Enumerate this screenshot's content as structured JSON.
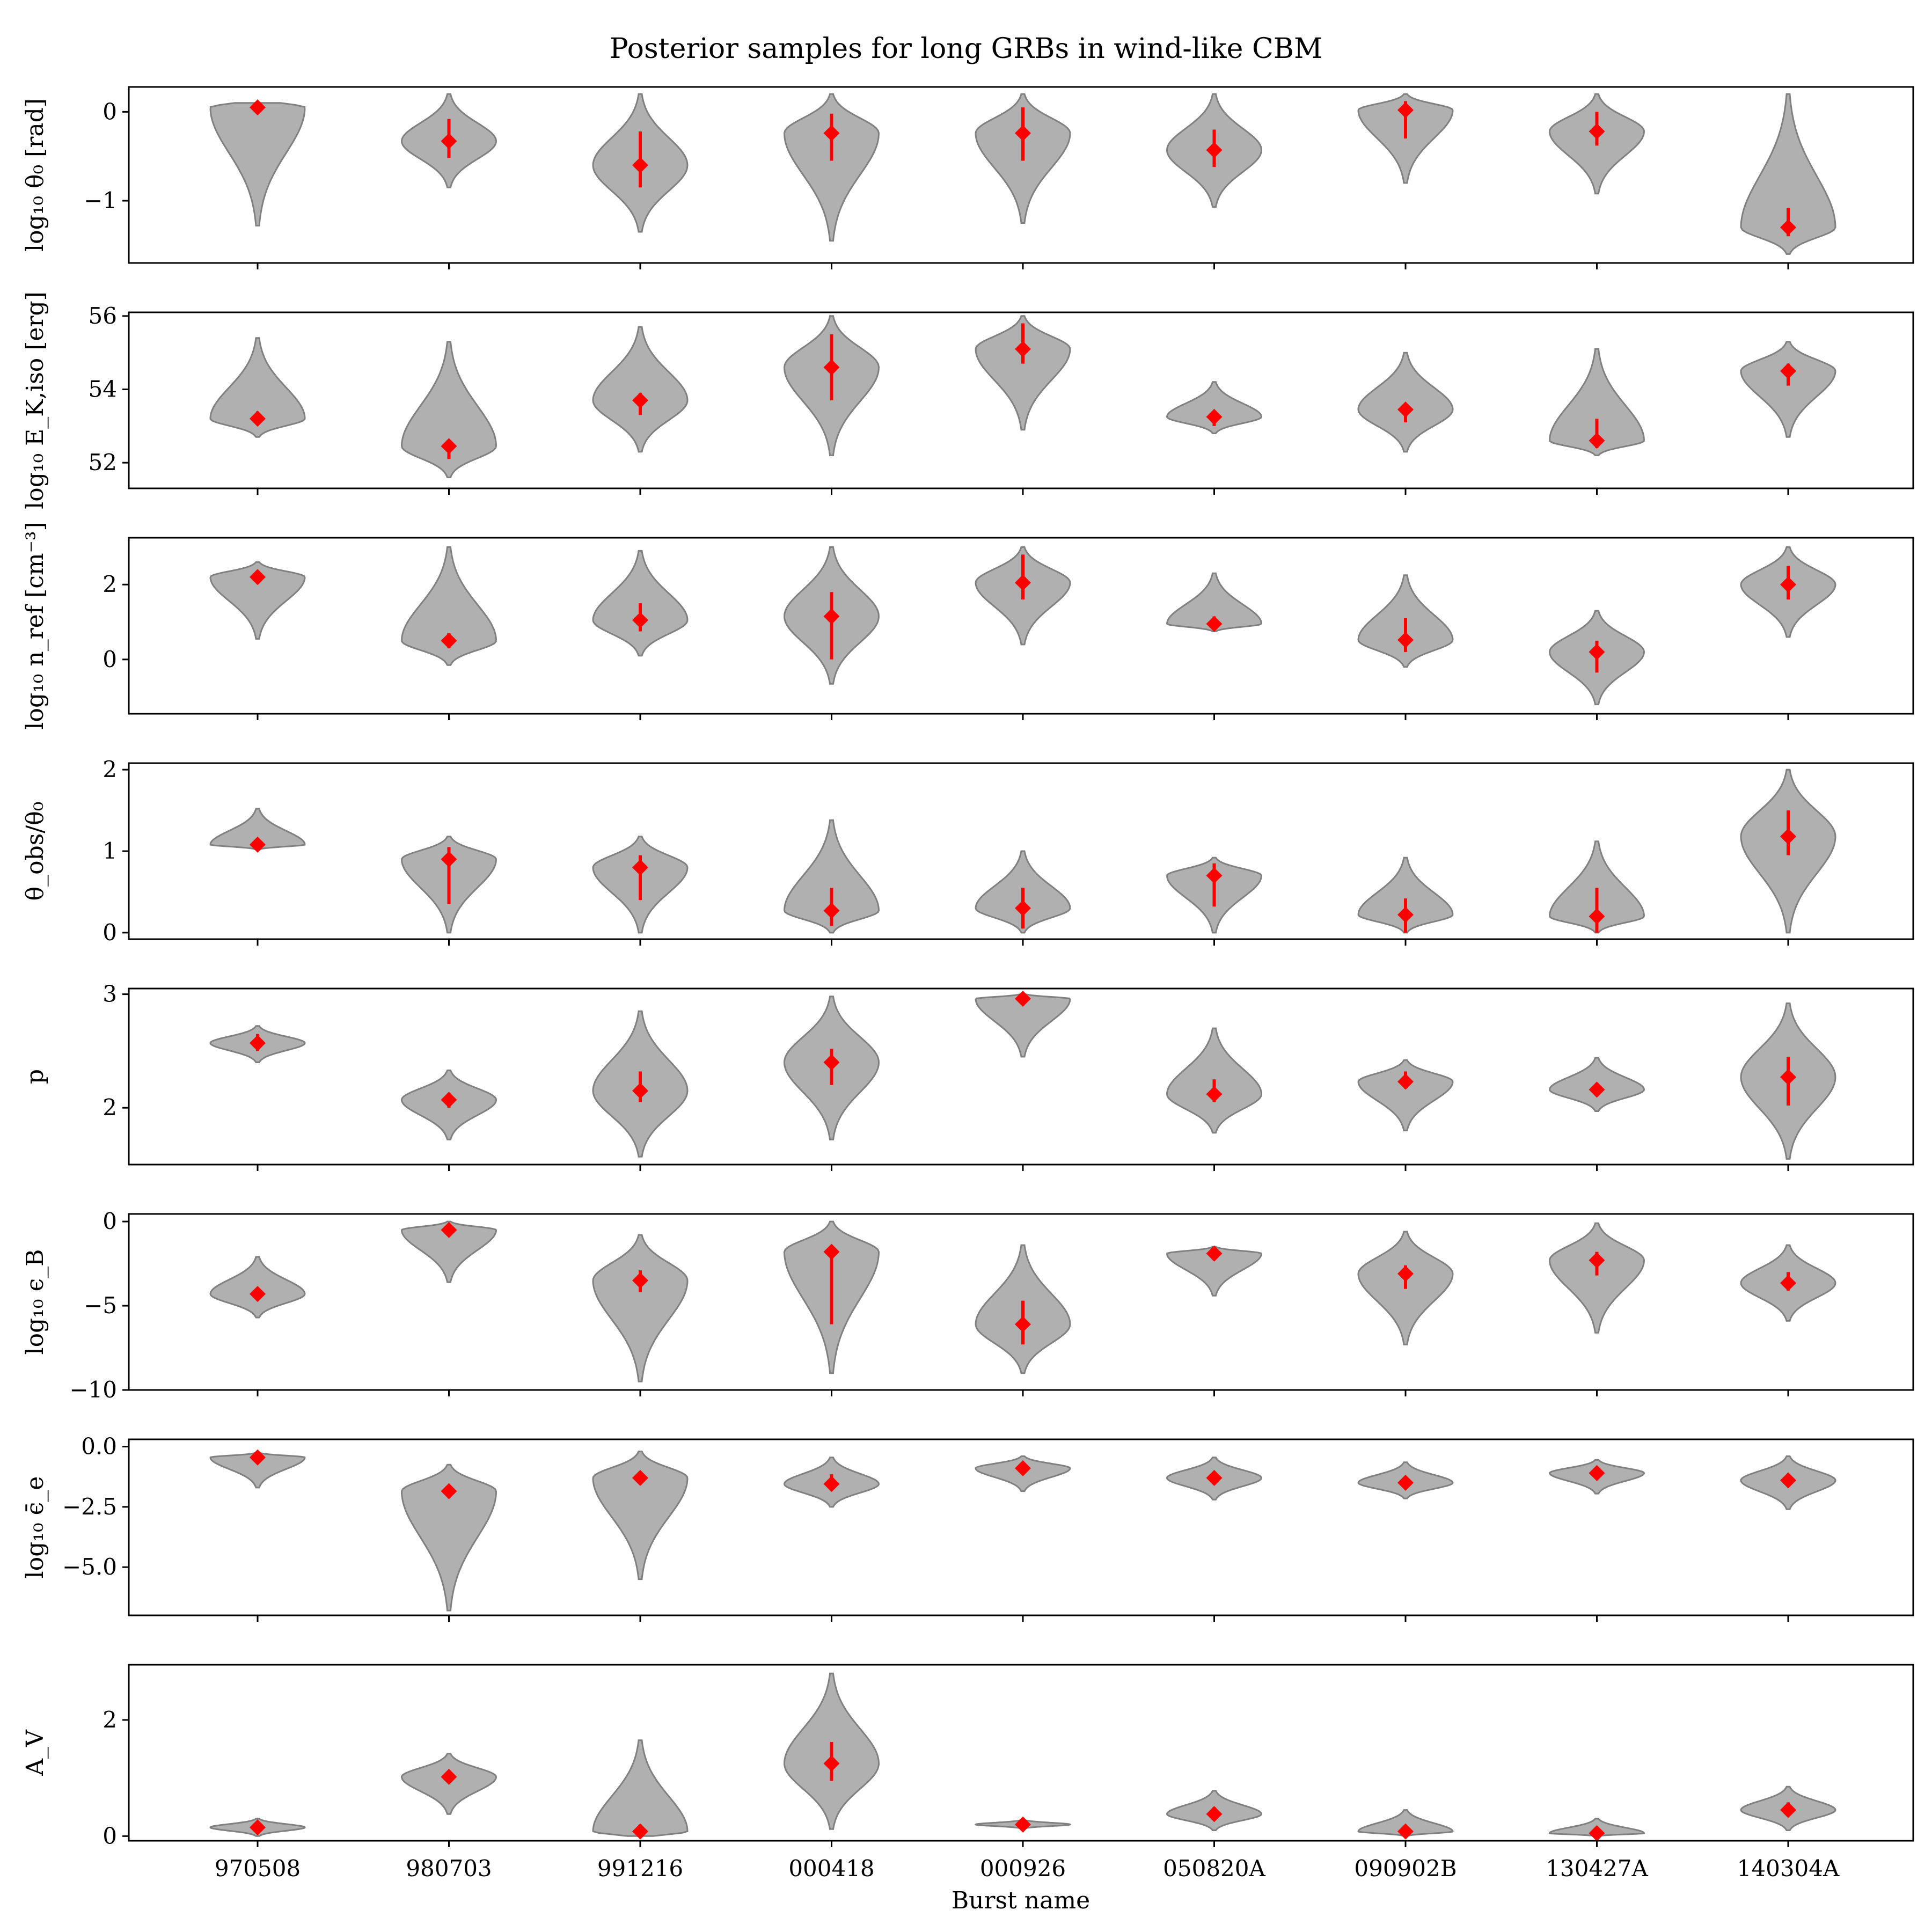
{
  "chart_data": {
    "type": "violin",
    "title": "Posterior samples for long GRBs in wind-like CBM",
    "xlabel": "Burst name",
    "categories": [
      "970508",
      "980703",
      "991216",
      "000418",
      "000926",
      "050820A",
      "090902B",
      "130427A",
      "140304A"
    ],
    "colors": {
      "violin_fill": "#b0b0b0",
      "violin_edge": "#808080",
      "marker": "#ff0000"
    },
    "panels": [
      {
        "ylabel": "log₁₀ θ₀ [rad]",
        "ylim": [
          -1.7,
          0.28
        ],
        "yticks": [
          0,
          -1
        ],
        "ytick_labels": [
          "0",
          "−1"
        ],
        "series": [
          {
            "median": 0.05,
            "ci": [
              0.02,
              0.08
            ],
            "range": [
              -1.28,
              0.1
            ]
          },
          {
            "median": -0.33,
            "ci": [
              -0.52,
              -0.08
            ],
            "range": [
              -0.85,
              0.2
            ]
          },
          {
            "median": -0.6,
            "ci": [
              -0.85,
              -0.22
            ],
            "range": [
              -1.35,
              0.2
            ]
          },
          {
            "median": -0.24,
            "ci": [
              -0.55,
              -0.02
            ],
            "range": [
              -1.45,
              0.2
            ]
          },
          {
            "median": -0.24,
            "ci": [
              -0.55,
              0.05
            ],
            "range": [
              -1.25,
              0.2
            ]
          },
          {
            "median": -0.43,
            "ci": [
              -0.62,
              -0.2
            ],
            "range": [
              -1.07,
              0.2
            ]
          },
          {
            "median": 0.02,
            "ci": [
              -0.3,
              0.12
            ],
            "range": [
              -0.8,
              0.2
            ]
          },
          {
            "median": -0.22,
            "ci": [
              -0.38,
              0.0
            ],
            "range": [
              -0.92,
              0.2
            ]
          },
          {
            "median": -1.3,
            "ci": [
              -1.4,
              -1.08
            ],
            "range": [
              -1.6,
              0.2
            ]
          }
        ]
      },
      {
        "ylabel": "log₁₀ E_K,iso [erg]",
        "ylim": [
          51.3,
          56.1
        ],
        "yticks": [
          52,
          54,
          56
        ],
        "ytick_labels": [
          "52",
          "54",
          "56"
        ],
        "series": [
          {
            "median": 53.2,
            "ci": [
              53.1,
              53.4
            ],
            "range": [
              52.7,
              55.4
            ]
          },
          {
            "median": 52.45,
            "ci": [
              52.1,
              52.6
            ],
            "range": [
              51.6,
              55.3
            ]
          },
          {
            "median": 53.7,
            "ci": [
              53.3,
              53.9
            ],
            "range": [
              52.3,
              55.7
            ]
          },
          {
            "median": 54.6,
            "ci": [
              53.7,
              55.5
            ],
            "range": [
              52.2,
              56.0
            ]
          },
          {
            "median": 55.1,
            "ci": [
              54.7,
              55.8
            ],
            "range": [
              52.9,
              56.0
            ]
          },
          {
            "median": 53.25,
            "ci": [
              53.0,
              53.4
            ],
            "range": [
              52.8,
              54.2
            ]
          },
          {
            "median": 53.45,
            "ci": [
              53.1,
              53.6
            ],
            "range": [
              52.3,
              55.0
            ]
          },
          {
            "median": 52.6,
            "ci": [
              52.4,
              53.2
            ],
            "range": [
              52.2,
              55.1
            ]
          },
          {
            "median": 54.5,
            "ci": [
              54.1,
              54.7
            ],
            "range": [
              52.7,
              55.3
            ]
          }
        ]
      },
      {
        "ylabel": "log₁₀ n_ref [cm⁻³]",
        "ylim": [
          -1.45,
          3.25
        ],
        "yticks": [
          0,
          2
        ],
        "ytick_labels": [
          "0",
          "2"
        ],
        "series": [
          {
            "median": 2.2,
            "ci": [
              2.05,
              2.35
            ],
            "range": [
              0.55,
              2.6
            ]
          },
          {
            "median": 0.5,
            "ci": [
              0.3,
              0.7
            ],
            "range": [
              -0.15,
              3.0
            ]
          },
          {
            "median": 1.05,
            "ci": [
              0.75,
              1.5
            ],
            "range": [
              0.1,
              2.9
            ]
          },
          {
            "median": 1.15,
            "ci": [
              0.0,
              1.8
            ],
            "range": [
              -0.65,
              3.0
            ]
          },
          {
            "median": 2.05,
            "ci": [
              1.6,
              2.8
            ],
            "range": [
              0.4,
              3.0
            ]
          },
          {
            "median": 0.95,
            "ci": [
              0.85,
              1.15
            ],
            "range": [
              0.75,
              2.3
            ]
          },
          {
            "median": 0.52,
            "ci": [
              0.2,
              1.1
            ],
            "range": [
              -0.2,
              2.25
            ]
          },
          {
            "median": 0.2,
            "ci": [
              -0.35,
              0.5
            ],
            "range": [
              -1.2,
              1.3
            ]
          },
          {
            "median": 2.0,
            "ci": [
              1.6,
              2.5
            ],
            "range": [
              0.6,
              3.0
            ]
          }
        ]
      },
      {
        "ylabel": "θ_obs/θ₀",
        "ylim": [
          -0.08,
          2.08
        ],
        "yticks": [
          0,
          1,
          2
        ],
        "ytick_labels": [
          "0",
          "1",
          "2"
        ],
        "series": [
          {
            "median": 1.08,
            "ci": [
              1.05,
              1.12
            ],
            "range": [
              1.02,
              1.52
            ]
          },
          {
            "median": 0.9,
            "ci": [
              0.35,
              1.05
            ],
            "range": [
              0.0,
              1.18
            ]
          },
          {
            "median": 0.8,
            "ci": [
              0.4,
              0.95
            ],
            "range": [
              0.0,
              1.18
            ]
          },
          {
            "median": 0.27,
            "ci": [
              0.08,
              0.55
            ],
            "range": [
              0.0,
              1.38
            ]
          },
          {
            "median": 0.3,
            "ci": [
              0.05,
              0.55
            ],
            "range": [
              0.0,
              1.0
            ]
          },
          {
            "median": 0.7,
            "ci": [
              0.32,
              0.85
            ],
            "range": [
              0.0,
              0.92
            ]
          },
          {
            "median": 0.22,
            "ci": [
              0.0,
              0.42
            ],
            "range": [
              0.0,
              0.92
            ]
          },
          {
            "median": 0.2,
            "ci": [
              0.0,
              0.55
            ],
            "range": [
              0.0,
              1.12
            ]
          },
          {
            "median": 1.18,
            "ci": [
              0.95,
              1.5
            ],
            "range": [
              0.0,
              2.0
            ]
          }
        ]
      },
      {
        "ylabel": "p",
        "ylim": [
          1.5,
          3.05
        ],
        "yticks": [
          2,
          3
        ],
        "ytick_labels": [
          "2",
          "3"
        ],
        "series": [
          {
            "median": 2.57,
            "ci": [
              2.5,
              2.65
            ],
            "range": [
              2.4,
              2.72
            ]
          },
          {
            "median": 2.07,
            "ci": [
              2.0,
              2.13
            ],
            "range": [
              1.72,
              2.33
            ]
          },
          {
            "median": 2.15,
            "ci": [
              2.05,
              2.32
            ],
            "range": [
              1.57,
              2.85
            ]
          },
          {
            "median": 2.4,
            "ci": [
              2.2,
              2.52
            ],
            "range": [
              1.72,
              2.98
            ]
          },
          {
            "median": 2.96,
            "ci": [
              2.92,
              2.99
            ],
            "range": [
              2.45,
              3.0
            ]
          },
          {
            "median": 2.12,
            "ci": [
              2.05,
              2.25
            ],
            "range": [
              1.78,
              2.7
            ]
          },
          {
            "median": 2.23,
            "ci": [
              2.17,
              2.32
            ],
            "range": [
              1.8,
              2.42
            ]
          },
          {
            "median": 2.16,
            "ci": [
              2.1,
              2.22
            ],
            "range": [
              1.97,
              2.44
            ]
          },
          {
            "median": 2.27,
            "ci": [
              2.02,
              2.45
            ],
            "range": [
              1.55,
              2.92
            ]
          }
        ]
      },
      {
        "ylabel": "log₁₀ ϵ_B",
        "ylim": [
          -10.0,
          0.45
        ],
        "yticks": [
          0,
          -5,
          -10
        ],
        "ytick_labels": [
          "0",
          "−5",
          "−10"
        ],
        "series": [
          {
            "median": -4.3,
            "ci": [
              -4.6,
              -4.0
            ],
            "range": [
              -5.7,
              -2.1
            ]
          },
          {
            "median": -0.5,
            "ci": [
              -0.8,
              -0.2
            ],
            "range": [
              -3.6,
              0.0
            ]
          },
          {
            "median": -3.5,
            "ci": [
              -4.2,
              -2.9
            ],
            "range": [
              -9.5,
              -0.8
            ]
          },
          {
            "median": -1.8,
            "ci": [
              -6.1,
              -1.5
            ],
            "range": [
              -9.0,
              0.0
            ]
          },
          {
            "median": -6.1,
            "ci": [
              -7.3,
              -4.7
            ],
            "range": [
              -9.0,
              -1.4
            ]
          },
          {
            "median": -1.9,
            "ci": [
              -2.3,
              -1.7
            ],
            "range": [
              -4.4,
              -1.5
            ]
          },
          {
            "median": -3.1,
            "ci": [
              -4.0,
              -2.6
            ],
            "range": [
              -7.3,
              -0.6
            ]
          },
          {
            "median": -2.3,
            "ci": [
              -3.2,
              -1.8
            ],
            "range": [
              -6.6,
              -0.1
            ]
          },
          {
            "median": -3.65,
            "ci": [
              -4.1,
              -3.0
            ],
            "range": [
              -5.9,
              -1.4
            ]
          }
        ]
      },
      {
        "ylabel": "log₁₀ ϵ̄_e",
        "ylim": [
          -7.0,
          0.3
        ],
        "yticks": [
          0,
          -2.5,
          -5
        ],
        "ytick_labels": [
          "0.0",
          "−2.5",
          "−5.0"
        ],
        "series": [
          {
            "median": -0.45,
            "ci": [
              -0.5,
              -0.4
            ],
            "range": [
              -1.7,
              -0.25
            ]
          },
          {
            "median": -1.85,
            "ci": [
              -2.0,
              -1.7
            ],
            "range": [
              -6.8,
              -0.75
            ]
          },
          {
            "median": -1.3,
            "ci": [
              -1.5,
              -1.1
            ],
            "range": [
              -5.5,
              -0.2
            ]
          },
          {
            "median": -1.55,
            "ci": [
              -1.75,
              -1.15
            ],
            "range": [
              -2.5,
              -0.45
            ]
          },
          {
            "median": -0.9,
            "ci": [
              -1.0,
              -0.8
            ],
            "range": [
              -1.85,
              -0.4
            ]
          },
          {
            "median": -1.3,
            "ci": [
              -1.5,
              -1.1
            ],
            "range": [
              -2.2,
              -0.45
            ]
          },
          {
            "median": -1.5,
            "ci": [
              -1.7,
              -1.3
            ],
            "range": [
              -2.15,
              -0.65
            ]
          },
          {
            "median": -1.1,
            "ci": [
              -1.3,
              -0.95
            ],
            "range": [
              -1.95,
              -0.55
            ]
          },
          {
            "median": -1.4,
            "ci": [
              -1.6,
              -1.2
            ],
            "range": [
              -2.6,
              -0.4
            ]
          }
        ]
      },
      {
        "ylabel": "A_V",
        "ylim": [
          -0.08,
          2.95
        ],
        "yticks": [
          0,
          2
        ],
        "ytick_labels": [
          "0",
          "2"
        ],
        "series": [
          {
            "median": 0.15,
            "ci": [
              0.1,
              0.22
            ],
            "range": [
              0.0,
              0.3
            ]
          },
          {
            "median": 1.02,
            "ci": [
              0.92,
              1.12
            ],
            "range": [
              0.38,
              1.42
            ]
          },
          {
            "median": 0.08,
            "ci": [
              0.02,
              0.2
            ],
            "range": [
              0.0,
              1.65
            ]
          },
          {
            "median": 1.25,
            "ci": [
              0.95,
              1.62
            ],
            "range": [
              0.12,
              2.8
            ]
          },
          {
            "median": 0.2,
            "ci": [
              0.15,
              0.26
            ],
            "range": [
              0.13,
              0.28
            ]
          },
          {
            "median": 0.38,
            "ci": [
              0.3,
              0.5
            ],
            "range": [
              0.1,
              0.78
            ]
          },
          {
            "median": 0.08,
            "ci": [
              0.02,
              0.15
            ],
            "range": [
              0.0,
              0.45
            ]
          },
          {
            "median": 0.05,
            "ci": [
              0.01,
              0.1
            ],
            "range": [
              0.0,
              0.3
            ]
          },
          {
            "median": 0.45,
            "ci": [
              0.35,
              0.58
            ],
            "range": [
              0.1,
              0.85
            ]
          }
        ]
      }
    ]
  }
}
